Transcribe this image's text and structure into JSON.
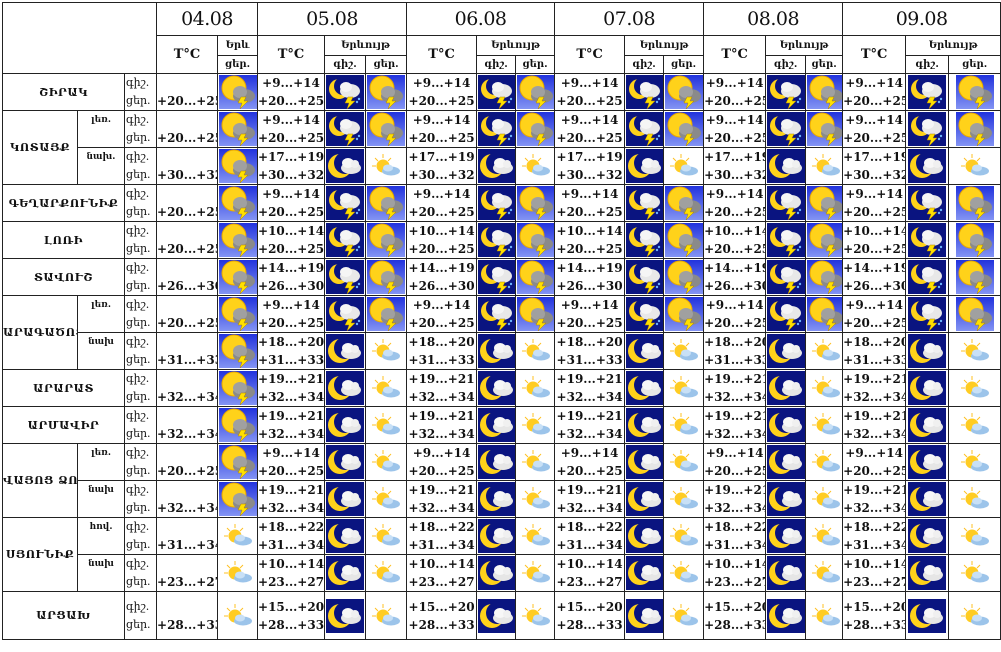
{
  "header": {
    "temp_label": "T°C",
    "phenomenon_label": "Երևույթ",
    "phenomenon_label_short": "Երև",
    "night_label": "գիշ.",
    "day_label": "ցեր.",
    "dates": [
      "04.08",
      "05.08",
      "06.08",
      "07.08",
      "08.08",
      "09.08"
    ]
  },
  "icon_types": {
    "storm-sun": "sun with thunderstorm cloud",
    "storm-night": "moon with thunderstorm cloud",
    "cloud-night": "moon with cloud",
    "sun-cloud": "sun behind cloud"
  },
  "colors": {
    "night_bg": "#0a1480",
    "storm_day_top": "#2233dd",
    "storm_day_bottom": "#b8c8ff",
    "sun": "#ffd21a"
  },
  "regions": [
    {
      "name": "ՇԻՐԱԿ",
      "subs": [
        {
          "label": "",
          "first": [
            "+20...+25",
            "storm-sun"
          ],
          "days": [
            [
              "+9...+14",
              "+20...+25",
              "storm-night",
              "storm-sun"
            ],
            [
              "+9...+14",
              "+20...+25",
              "storm-night",
              "storm-sun"
            ],
            [
              "+9...+14",
              "+20...+25",
              "storm-night",
              "storm-sun"
            ],
            [
              "+9...+14",
              "+20...+25",
              "storm-night",
              "storm-sun"
            ],
            [
              "+9...+14",
              "+20...+25",
              "storm-night",
              "storm-sun"
            ]
          ]
        }
      ]
    },
    {
      "name": "ԿՈՏԱՅՔ",
      "subs": [
        {
          "label": "լեռ.",
          "first": [
            "+20...+25",
            "storm-sun"
          ],
          "days": [
            [
              "+9...+14",
              "+20...+25",
              "storm-night",
              "storm-sun"
            ],
            [
              "+9...+14",
              "+20...+25",
              "storm-night",
              "storm-sun"
            ],
            [
              "+9...+14",
              "+20...+25",
              "storm-night",
              "storm-sun"
            ],
            [
              "+9...+14",
              "+20...+25",
              "storm-night",
              "storm-sun"
            ],
            [
              "+9...+14",
              "+20...+25",
              "storm-night",
              "storm-sun"
            ]
          ]
        },
        {
          "label": "նախ.",
          "first": [
            "+30...+32",
            "storm-sun"
          ],
          "days": [
            [
              "+17...+19",
              "+30...+32",
              "cloud-night",
              "sun-cloud"
            ],
            [
              "+17...+19",
              "+30...+32",
              "cloud-night",
              "sun-cloud"
            ],
            [
              "+17...+19",
              "+30...+32",
              "cloud-night",
              "sun-cloud"
            ],
            [
              "+17...+19",
              "+30...+32",
              "cloud-night",
              "sun-cloud"
            ],
            [
              "+17...+19",
              "+30...+32",
              "cloud-night",
              "sun-cloud"
            ]
          ]
        }
      ]
    },
    {
      "name": "ԳԵՂԱՐՔՈՒՆԻՔ",
      "subs": [
        {
          "label": "",
          "first": [
            "+20...+25",
            "storm-sun"
          ],
          "days": [
            [
              "+9...+14",
              "+20...+25",
              "storm-night",
              "storm-sun"
            ],
            [
              "+9...+14",
              "+20...+25",
              "storm-night",
              "storm-sun"
            ],
            [
              "+9...+14",
              "+20...+25",
              "storm-night",
              "storm-sun"
            ],
            [
              "+9...+14",
              "+20...+25",
              "storm-night",
              "storm-sun"
            ],
            [
              "+9...+14",
              "+20...+25",
              "storm-night",
              "storm-sun"
            ]
          ]
        }
      ]
    },
    {
      "name": "ԼՈՌԻ",
      "subs": [
        {
          "label": "",
          "first": [
            "+20...+25",
            "storm-sun"
          ],
          "days": [
            [
              "+10...+14",
              "+20...+25",
              "storm-night",
              "storm-sun"
            ],
            [
              "+10...+14",
              "+20...+25",
              "storm-night",
              "storm-sun"
            ],
            [
              "+10...+14",
              "+20...+25",
              "storm-night",
              "storm-sun"
            ],
            [
              "+10...+14",
              "+20...+25",
              "storm-night",
              "storm-sun"
            ],
            [
              "+10...+14",
              "+20...+25",
              "storm-night",
              "storm-sun"
            ]
          ]
        }
      ]
    },
    {
      "name": "ՏԱՎՈՒՇ",
      "subs": [
        {
          "label": "",
          "first": [
            "+26...+30",
            "storm-sun"
          ],
          "days": [
            [
              "+14...+19",
              "+26...+30",
              "storm-night",
              "storm-sun"
            ],
            [
              "+14...+19",
              "+26...+30",
              "storm-night",
              "storm-sun"
            ],
            [
              "+14...+19",
              "+26...+30",
              "storm-night",
              "storm-sun"
            ],
            [
              "+14...+19",
              "+26...+30",
              "storm-night",
              "storm-sun"
            ],
            [
              "+14...+19",
              "+26...+30",
              "storm-night",
              "storm-sun"
            ]
          ]
        }
      ]
    },
    {
      "name": "ԱՐԱԳԱԾՈՏՆ",
      "subs": [
        {
          "label": "լեռ.",
          "first": [
            "+20...+25",
            "storm-sun"
          ],
          "days": [
            [
              "+9...+14",
              "+20...+25",
              "storm-night",
              "storm-sun"
            ],
            [
              "+9...+14",
              "+20...+25",
              "storm-night",
              "storm-sun"
            ],
            [
              "+9...+14",
              "+20...+25",
              "storm-night",
              "storm-sun"
            ],
            [
              "+9...+14",
              "+20...+25",
              "storm-night",
              "storm-sun"
            ],
            [
              "+9...+14",
              "+20...+25",
              "storm-night",
              "storm-sun"
            ]
          ]
        },
        {
          "label": "նախ",
          "first": [
            "+31...+33",
            "storm-sun"
          ],
          "days": [
            [
              "+18...+20",
              "+31...+33",
              "cloud-night",
              "sun-cloud"
            ],
            [
              "+18...+20",
              "+31...+33",
              "cloud-night",
              "sun-cloud"
            ],
            [
              "+18...+20",
              "+31...+33",
              "cloud-night",
              "sun-cloud"
            ],
            [
              "+18...+20",
              "+31...+33",
              "cloud-night",
              "sun-cloud"
            ],
            [
              "+18...+20",
              "+31...+33",
              "cloud-night",
              "sun-cloud"
            ]
          ]
        }
      ]
    },
    {
      "name": "ԱՐԱՐԱՏ",
      "subs": [
        {
          "label": "",
          "first": [
            "+32...+34",
            "storm-sun"
          ],
          "days": [
            [
              "+19...+21",
              "+32...+34",
              "cloud-night",
              "sun-cloud"
            ],
            [
              "+19...+21",
              "+32...+34",
              "cloud-night",
              "sun-cloud"
            ],
            [
              "+19...+21",
              "+32...+34",
              "cloud-night",
              "sun-cloud"
            ],
            [
              "+19...+21",
              "+32...+34",
              "cloud-night",
              "sun-cloud"
            ],
            [
              "+19...+21",
              "+32...+34",
              "cloud-night",
              "sun-cloud"
            ]
          ]
        }
      ]
    },
    {
      "name": "ԱՐՄԱՎԻՐ",
      "subs": [
        {
          "label": "",
          "first": [
            "+32...+34",
            "storm-sun"
          ],
          "days": [
            [
              "+19...+21",
              "+32...+34",
              "cloud-night",
              "sun-cloud"
            ],
            [
              "+19...+21",
              "+32...+34",
              "cloud-night",
              "sun-cloud"
            ],
            [
              "+19...+21",
              "+32...+34",
              "cloud-night",
              "sun-cloud"
            ],
            [
              "+19...+21",
              "+32...+34",
              "cloud-night",
              "sun-cloud"
            ],
            [
              "+19...+21",
              "+32...+34",
              "cloud-night",
              "sun-cloud"
            ]
          ]
        }
      ]
    },
    {
      "name": "ՎԱՅՈՑ ՁՈՐ",
      "subs": [
        {
          "label": "լեռ.",
          "first": [
            "+20...+25",
            "storm-sun"
          ],
          "days": [
            [
              "+9...+14",
              "+20...+25",
              "cloud-night",
              "sun-cloud"
            ],
            [
              "+9...+14",
              "+20...+25",
              "cloud-night",
              "sun-cloud"
            ],
            [
              "+9...+14",
              "+20...+25",
              "cloud-night",
              "sun-cloud"
            ],
            [
              "+9...+14",
              "+20...+25",
              "cloud-night",
              "sun-cloud"
            ],
            [
              "+9...+14",
              "+20...+25",
              "cloud-night",
              "sun-cloud"
            ]
          ]
        },
        {
          "label": "նախ",
          "first": [
            "+32...+34",
            "storm-sun"
          ],
          "days": [
            [
              "+19...+21",
              "+32...+34",
              "cloud-night",
              "sun-cloud"
            ],
            [
              "+19...+21",
              "+32...+34",
              "cloud-night",
              "sun-cloud"
            ],
            [
              "+19...+21",
              "+32...+34",
              "cloud-night",
              "sun-cloud"
            ],
            [
              "+19...+21",
              "+32...+34",
              "cloud-night",
              "sun-cloud"
            ],
            [
              "+19...+21",
              "+32...+34",
              "cloud-night",
              "sun-cloud"
            ]
          ]
        }
      ]
    },
    {
      "name": "ՍՅՈՒՆԻՔ",
      "subs": [
        {
          "label": "հով.",
          "first": [
            "+31...+34",
            "sun-cloud"
          ],
          "days": [
            [
              "+18...+22",
              "+31...+34",
              "cloud-night",
              "sun-cloud"
            ],
            [
              "+18...+22",
              "+31...+34",
              "cloud-night",
              "sun-cloud"
            ],
            [
              "+18...+22",
              "+31...+34",
              "cloud-night",
              "sun-cloud"
            ],
            [
              "+18...+22",
              "+31...+34",
              "cloud-night",
              "sun-cloud"
            ],
            [
              "+18...+22",
              "+31...+34",
              "cloud-night",
              "sun-cloud"
            ]
          ]
        },
        {
          "label": "նախ",
          "first": [
            "+23...+27",
            "sun-cloud"
          ],
          "days": [
            [
              "+10...+14",
              "+23...+27",
              "cloud-night",
              "sun-cloud"
            ],
            [
              "+10...+14",
              "+23...+27",
              "cloud-night",
              "sun-cloud"
            ],
            [
              "+10...+14",
              "+23...+27",
              "cloud-night",
              "sun-cloud"
            ],
            [
              "+10...+14",
              "+23...+27",
              "cloud-night",
              "sun-cloud"
            ],
            [
              "+10...+14",
              "+23...+27",
              "cloud-night",
              "sun-cloud"
            ]
          ]
        }
      ]
    },
    {
      "name": "ԱՐՑԱԽ",
      "subs": [
        {
          "label": "",
          "first": [
            "+28...+33",
            "sun-cloud"
          ],
          "days": [
            [
              "+15...+20",
              "+28...+33",
              "cloud-night",
              "sun-cloud"
            ],
            [
              "+15...+20",
              "+28...+33",
              "cloud-night",
              "sun-cloud"
            ],
            [
              "+15...+20",
              "+28...+33",
              "cloud-night",
              "sun-cloud"
            ],
            [
              "+15...+20",
              "+28...+33",
              "cloud-night",
              "sun-cloud"
            ],
            [
              "+15...+20",
              "+28...+33",
              "cloud-night",
              "sun-cloud"
            ]
          ]
        }
      ]
    }
  ]
}
